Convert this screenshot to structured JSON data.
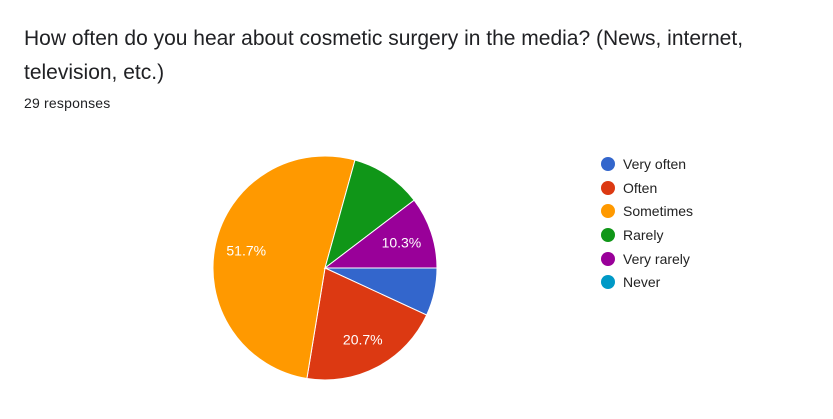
{
  "header": {
    "title": "How often do you hear about cosmetic surgery in the media? (News, internet, television, etc.)",
    "responses": "29 responses"
  },
  "chart_data": {
    "type": "pie",
    "title": "How often do you hear about cosmetic surgery in the media? (News, internet, television, etc.)",
    "categories": [
      "Very often",
      "Often",
      "Sometimes",
      "Rarely",
      "Very rarely",
      "Never"
    ],
    "counts": [
      2,
      6,
      15,
      3,
      3,
      0
    ],
    "values": [
      6.9,
      20.7,
      51.7,
      10.3,
      10.3,
      0
    ],
    "data_labels": [
      "",
      "20.7%",
      "51.7%",
      "",
      "10.3%",
      ""
    ],
    "colors": [
      "#3366cc",
      "#dc3912",
      "#ff9900",
      "#109618",
      "#990099",
      "#0099c6"
    ],
    "start_angle": "3 o'clock",
    "direction": "clockwise",
    "legend_position": "right"
  }
}
